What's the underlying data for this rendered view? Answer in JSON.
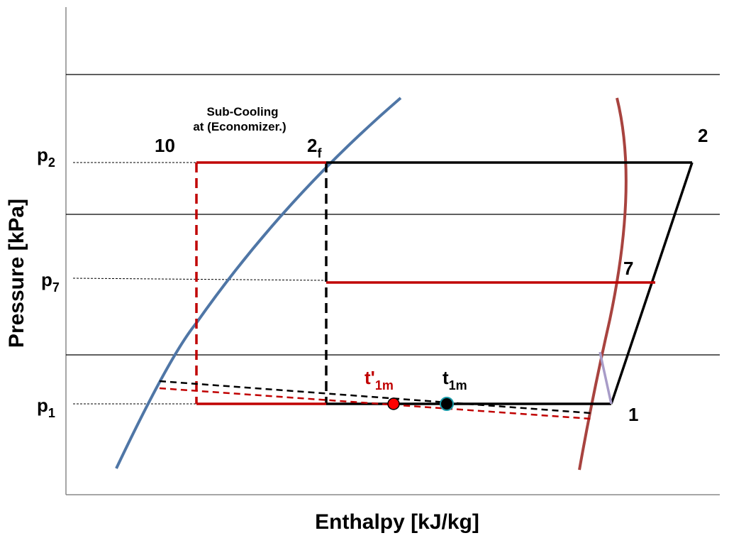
{
  "axes": {
    "xlabel": "Enthalpy [kJ/kg]",
    "ylabel": "Pressure [kPa]"
  },
  "labels": {
    "p2_main": "p",
    "p2_sub": "2",
    "p7_main": "p",
    "p7_sub": "7",
    "p1_main": "p",
    "p1_sub": "1",
    "pt10": "10",
    "pt2f_main": "2",
    "pt2f_sub": "f",
    "pt2": "2",
    "pt7": "7",
    "pt1": "1",
    "t1m_prime_main": "t'",
    "t1m_prime_sub": "1m",
    "t1m_main": "t",
    "t1m_sub": "1m",
    "subcooling_line1": "Sub-Cooling",
    "subcooling_line2": "at (Economizer.)"
  },
  "colors": {
    "black": "#000000",
    "red": "#c00000",
    "blue": "#4f76a6",
    "brown": "#a8433f",
    "lavender": "#a89cc8",
    "point_red": "#ff0000",
    "point_teal": "#1a9aa8"
  }
}
